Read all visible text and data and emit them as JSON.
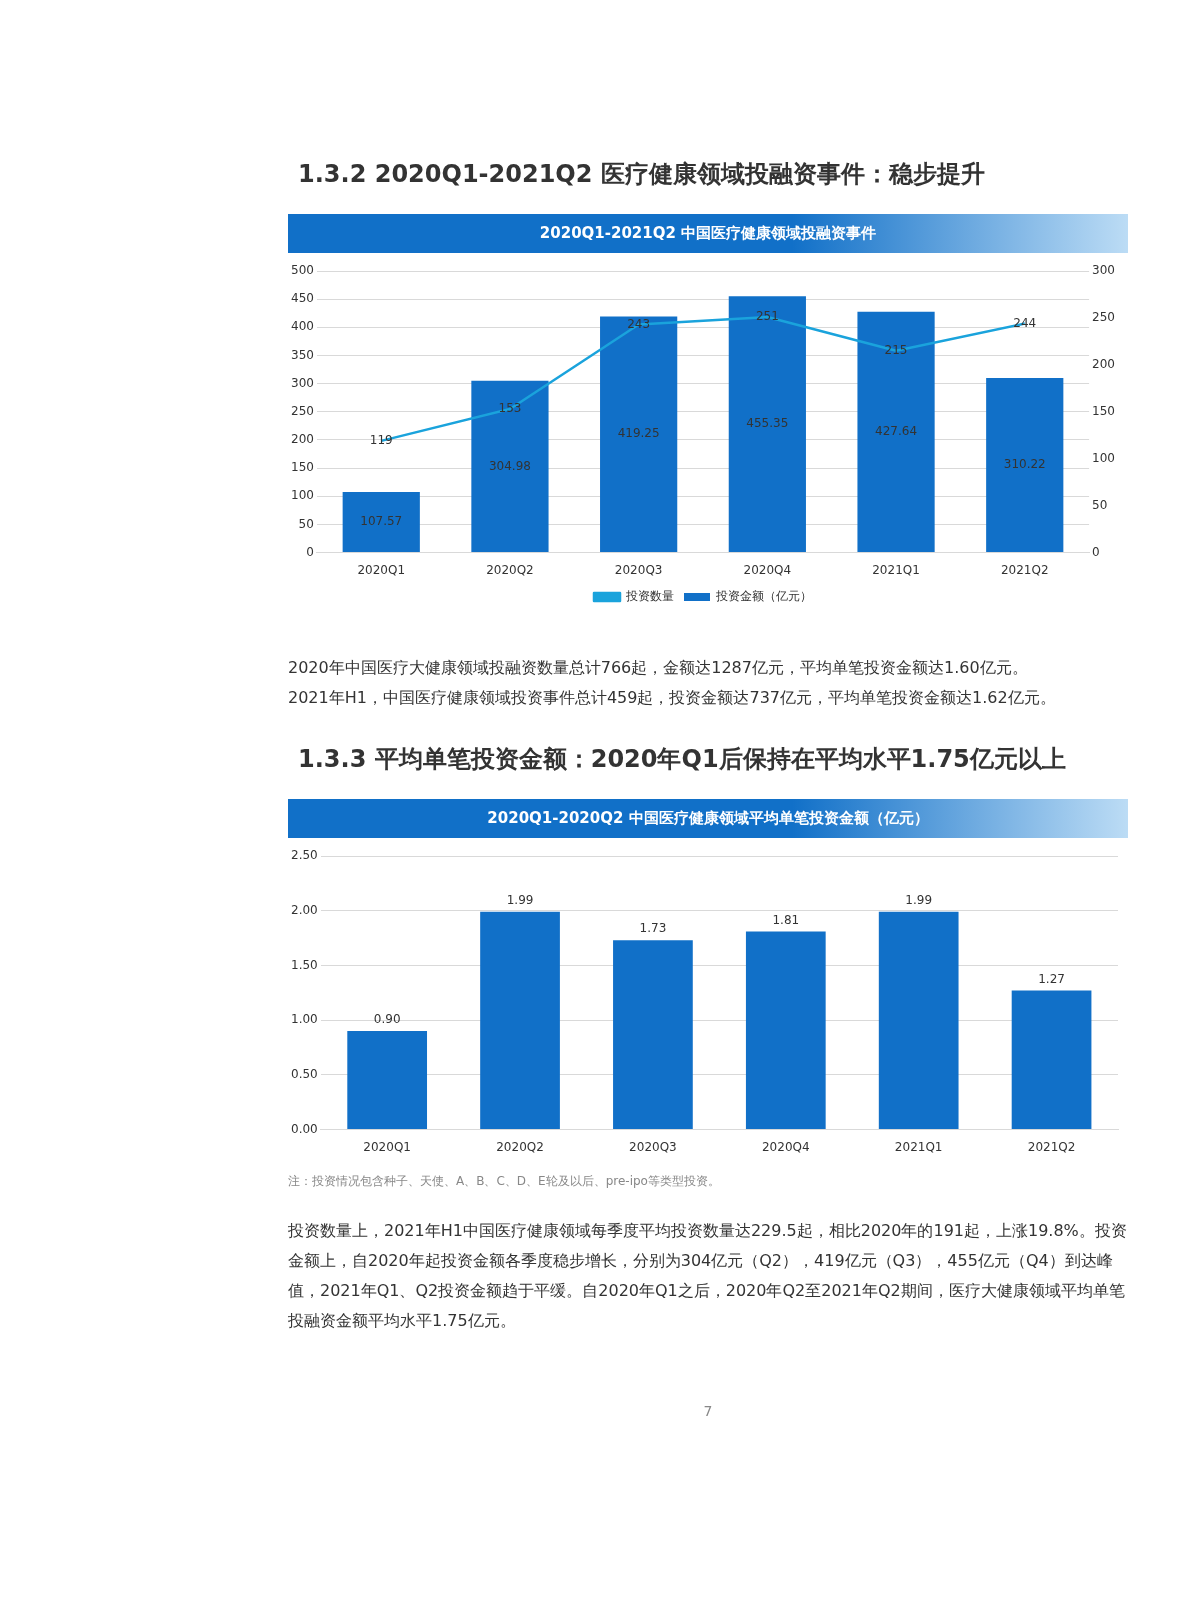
{
  "chart_data": [
    {
      "type": "bar",
      "title": "1.3.2 2020Q1-2021Q2 医疗健康领域投融资事件：稳步提升",
      "subtitle": "2020Q1-2021Q2 中国医疗健康领域投融资事件",
      "categories": [
        "2020Q1",
        "2020Q2",
        "2020Q3",
        "2020Q4",
        "2021Q1",
        "2021Q2"
      ],
      "series": [
        {
          "name": "投资金额（亿元）",
          "color": "#1170c8",
          "values": [
            107.57,
            304.98,
            419.25,
            455.35,
            427.64,
            310.22
          ]
        },
        {
          "name": "投资数量",
          "type": "line",
          "axis": "y2",
          "color": "#1aa3dc",
          "values": [
            119,
            153,
            243,
            251,
            215,
            244
          ]
        }
      ],
      "ylim": [
        0,
        500
      ],
      "yticks": [
        0,
        50,
        100,
        150,
        200,
        250,
        300,
        350,
        400,
        450,
        500
      ],
      "y2lim": [
        0,
        300
      ],
      "y2ticks": [
        0,
        50,
        100,
        150,
        200,
        250,
        300
      ],
      "grid": "y",
      "legend": "bottom",
      "marker": "none",
      "data_labels": true,
      "annotations": [
        "2020年中国医疗大健康领域投融资数量总计766起，金额达1287亿元，平均单笔投资金额达1.60亿元。",
        "2021年H1，中国医疗健康领域投资事件总计459起，投资金额达737亿元，平均单笔投资金额达1.62亿元。"
      ]
    },
    {
      "type": "bar",
      "title": "1.3.3 平均单笔投资金额：2020年Q1后保持在平均水平1.75亿元以上",
      "subtitle": "2020Q1-2020Q2 中国医疗健康领域平均单笔投资金额（亿元）",
      "categories": [
        "2020Q1",
        "2020Q2",
        "2020Q3",
        "2020Q4",
        "2021Q1",
        "2021Q2"
      ],
      "values": [
        0.9,
        1.99,
        1.73,
        1.81,
        1.99,
        1.27
      ],
      "value_labels": [
        "0.90",
        "1.99",
        "1.73",
        "1.81",
        "1.99",
        "1.27"
      ],
      "color": "#1170c8",
      "ylim": [
        0,
        2.5
      ],
      "yticks": [
        {
          "value": 0,
          "label": "0.00"
        },
        {
          "value": 0.5,
          "label": "0.50"
        },
        {
          "value": 1,
          "label": "1.00"
        },
        {
          "value": 1.5,
          "label": "1.50"
        },
        {
          "value": 2,
          "label": "2.00"
        },
        {
          "value": 2.5,
          "label": "2.50"
        }
      ],
      "grid": "y",
      "legend": false,
      "annotations": [
        "注：投资情况包含种子、天使、A、B、C、D、E轮及以后、pre-ipo等类型投资。",
        "投资数量上，2021年H1中国医疗健康领域每季度平均投资数量达229.5起，相比2020年的191起，上涨19.8%。投资金额上，自2020年起投资金额各季度稳步增长，分别为304亿元（Q2），419亿元（Q3），455亿元（Q4）到达峰值，2021年Q1、Q2投资金额趋于平缓。自2020年Q1之后，2020年Q2至2021年Q2期间，医疗大健康领域平均单笔投融资金额平均水平1.75亿元。",
        "7"
      ]
    }
  ]
}
